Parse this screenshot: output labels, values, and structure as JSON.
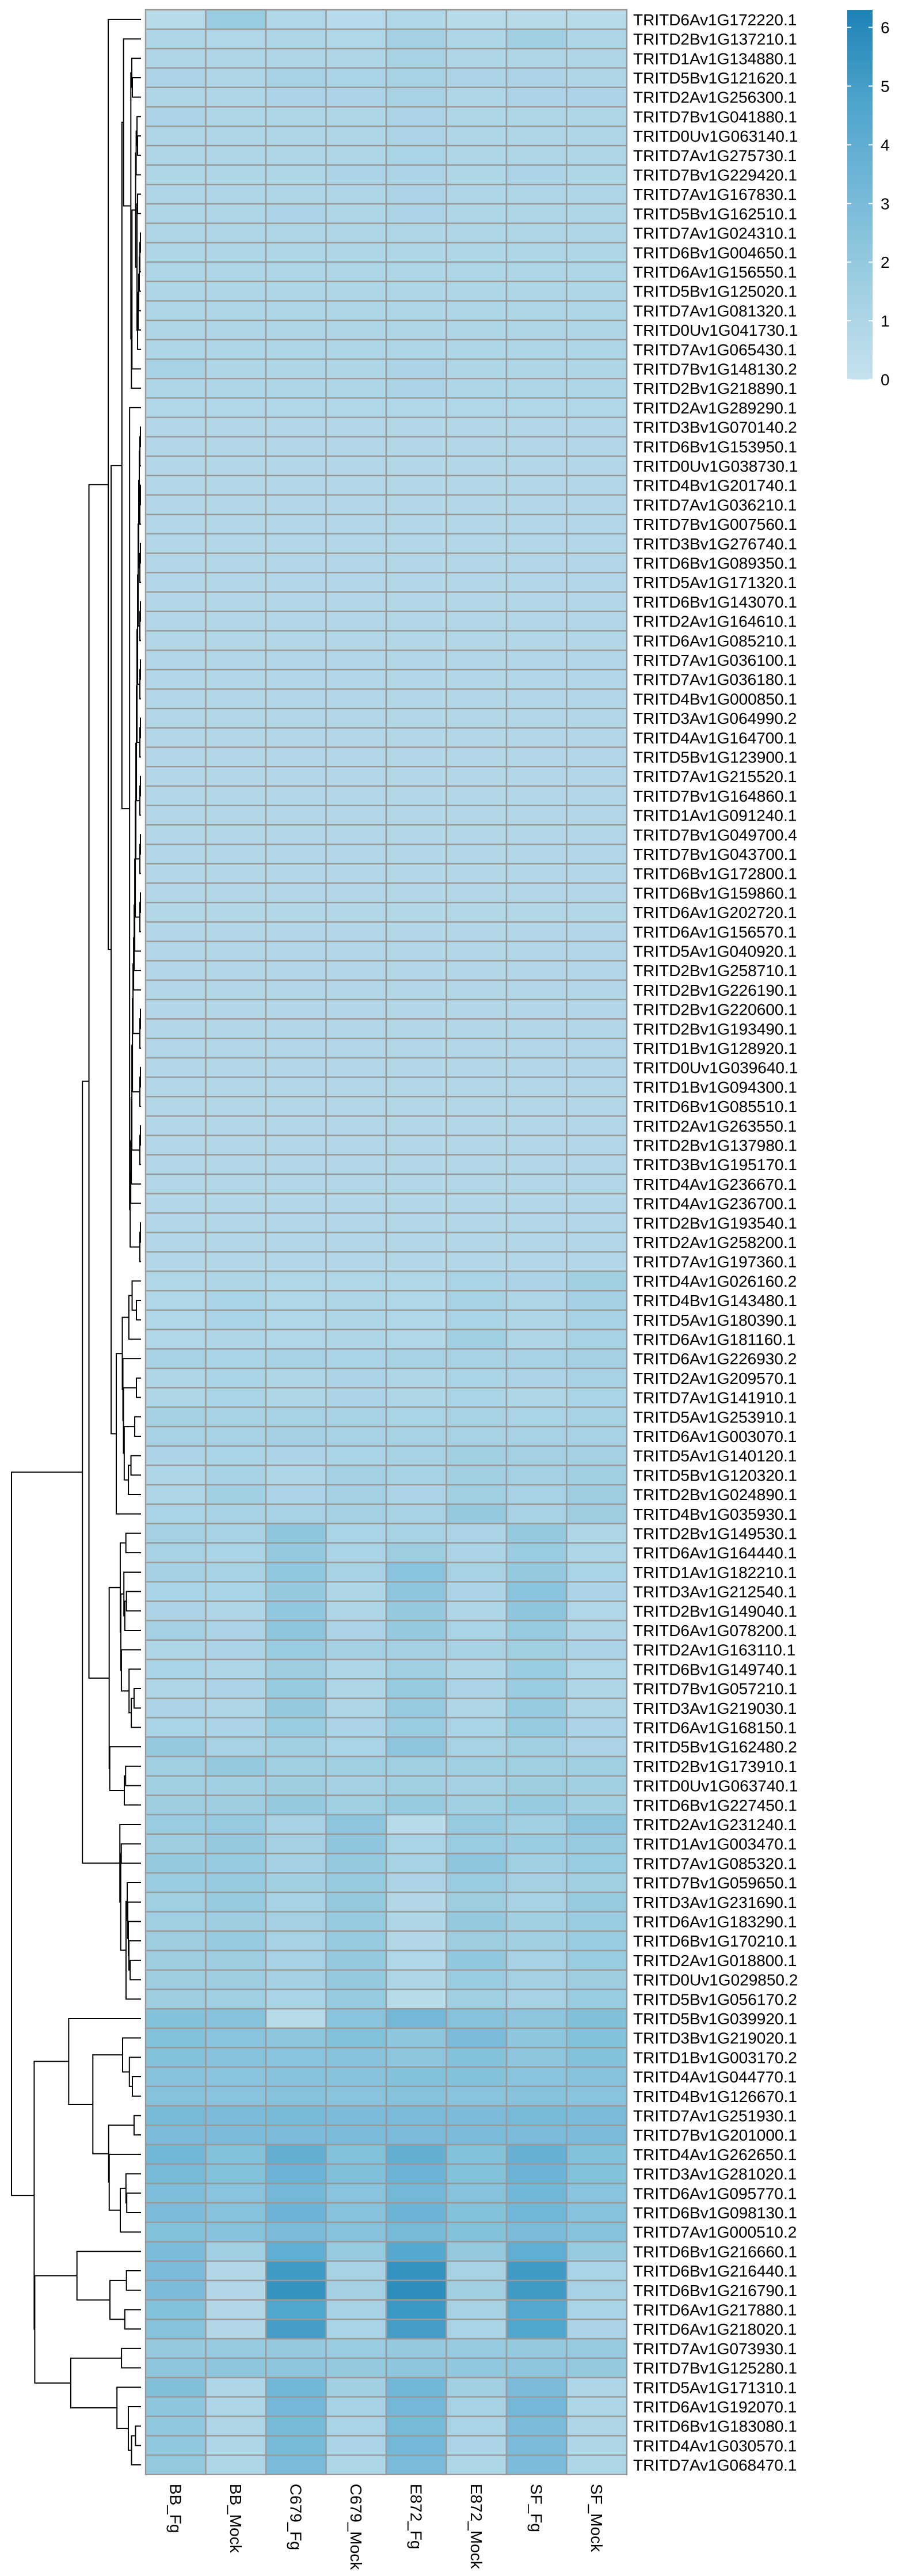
{
  "chart_data": {
    "type": "heatmap",
    "columns": [
      "BB_Fg",
      "BB_Mock",
      "C679_Fg",
      "C679_Mock",
      "E872_Fg",
      "E872_Mock",
      "SF_Fg",
      "SF_Mock"
    ],
    "rows": [
      "TRITD6Av1G172220.1",
      "TRITD2Bv1G137210.1",
      "TRITD1Av1G134880.1",
      "TRITD5Bv1G121620.1",
      "TRITD2Av1G256300.1",
      "TRITD7Bv1G041880.1",
      "TRITD0Uv1G063140.1",
      "TRITD7Av1G275730.1",
      "TRITD7Bv1G229420.1",
      "TRITD7Av1G167830.1",
      "TRITD5Bv1G162510.1",
      "TRITD7Av1G024310.1",
      "TRITD6Bv1G004650.1",
      "TRITD6Av1G156550.1",
      "TRITD5Bv1G125020.1",
      "TRITD7Av1G081320.1",
      "TRITD0Uv1G041730.1",
      "TRITD7Av1G065430.1",
      "TRITD7Bv1G148130.2",
      "TRITD2Bv1G218890.1",
      "TRITD2Av1G289290.1",
      "TRITD3Bv1G070140.2",
      "TRITD6Bv1G153950.1",
      "TRITD0Uv1G038730.1",
      "TRITD4Bv1G201740.1",
      "TRITD7Av1G036210.1",
      "TRITD7Bv1G007560.1",
      "TRITD3Bv1G276740.1",
      "TRITD6Bv1G089350.1",
      "TRITD5Av1G171320.1",
      "TRITD6Bv1G143070.1",
      "TRITD2Av1G164610.1",
      "TRITD6Av1G085210.1",
      "TRITD7Av1G036100.1",
      "TRITD7Av1G036180.1",
      "TRITD4Bv1G000850.1",
      "TRITD3Av1G064990.2",
      "TRITD4Av1G164700.1",
      "TRITD5Bv1G123900.1",
      "TRITD7Av1G215520.1",
      "TRITD7Bv1G164860.1",
      "TRITD1Av1G091240.1",
      "TRITD7Bv1G049700.4",
      "TRITD7Bv1G043700.1",
      "TRITD6Bv1G172800.1",
      "TRITD6Bv1G159860.1",
      "TRITD6Av1G202720.1",
      "TRITD6Av1G156570.1",
      "TRITD5Av1G040920.1",
      "TRITD2Bv1G258710.1",
      "TRITD2Bv1G226190.1",
      "TRITD2Bv1G220600.1",
      "TRITD2Bv1G193490.1",
      "TRITD1Bv1G128920.1",
      "TRITD0Uv1G039640.1",
      "TRITD1Bv1G094300.1",
      "TRITD6Bv1G085510.1",
      "TRITD2Av1G263550.1",
      "TRITD2Bv1G137980.1",
      "TRITD3Bv1G195170.1",
      "TRITD4Av1G236670.1",
      "TRITD4Av1G236700.1",
      "TRITD2Bv1G193540.1",
      "TRITD2Av1G258200.1",
      "TRITD7Av1G197360.1",
      "TRITD4Av1G026160.2",
      "TRITD4Bv1G143480.1",
      "TRITD5Av1G180390.1",
      "TRITD6Av1G181160.1",
      "TRITD6Av1G226930.2",
      "TRITD2Av1G209570.1",
      "TRITD7Av1G141910.1",
      "TRITD5Av1G253910.1",
      "TRITD6Av1G003070.1",
      "TRITD5Av1G140120.1",
      "TRITD5Bv1G120320.1",
      "TRITD2Bv1G024890.1",
      "TRITD4Bv1G035930.1",
      "TRITD2Bv1G149530.1",
      "TRITD6Av1G164440.1",
      "TRITD1Av1G182210.1",
      "TRITD3Av1G212540.1",
      "TRITD2Bv1G149040.1",
      "TRITD6Av1G078200.1",
      "TRITD2Av1G163110.1",
      "TRITD6Bv1G149740.1",
      "TRITD7Bv1G057210.1",
      "TRITD3Av1G219030.1",
      "TRITD6Av1G168150.1",
      "TRITD5Bv1G162480.2",
      "TRITD2Bv1G173910.1",
      "TRITD0Uv1G063740.1",
      "TRITD6Bv1G227450.1",
      "TRITD2Av1G231240.1",
      "TRITD1Av1G003470.1",
      "TRITD7Av1G085320.1",
      "TRITD7Bv1G059650.1",
      "TRITD3Av1G231690.1",
      "TRITD6Av1G183290.1",
      "TRITD6Bv1G170210.1",
      "TRITD2Av1G018800.1",
      "TRITD0Uv1G029850.2",
      "TRITD5Bv1G056170.2",
      "TRITD5Bv1G039920.1",
      "TRITD3Bv1G219020.1",
      "TRITD1Bv1G003170.2",
      "TRITD4Av1G044770.1",
      "TRITD4Bv1G126670.1",
      "TRITD7Av1G251930.1",
      "TRITD7Bv1G201000.1",
      "TRITD4Av1G262650.1",
      "TRITD3Av1G281020.1",
      "TRITD6Av1G095770.1",
      "TRITD6Bv1G098130.1",
      "TRITD7Av1G000510.2",
      "TRITD6Bv1G216660.1",
      "TRITD6Bv1G216440.1",
      "TRITD6Bv1G216790.1",
      "TRITD6Av1G217880.1",
      "TRITD6Av1G218020.1",
      "TRITD7Av1G073930.1",
      "TRITD7Bv1G125280.1",
      "TRITD5Av1G171310.1",
      "TRITD6Av1G192070.1",
      "TRITD6Bv1G183080.1",
      "TRITD4Av1G030570.1",
      "TRITD7Av1G068470.1"
    ],
    "values": [
      [
        0.6,
        1.8,
        0.9,
        0.7,
        0.9,
        0.6,
        0.6,
        0.6
      ],
      [
        1.0,
        0.9,
        1.0,
        0.9,
        1.4,
        1.0,
        1.5,
        1.0
      ],
      [
        1.0,
        1.0,
        1.0,
        1.0,
        1.3,
        1.0,
        1.0,
        1.0
      ],
      [
        1.1,
        1.0,
        1.3,
        1.2,
        1.3,
        1.1,
        1.1,
        1.0
      ],
      [
        1.0,
        1.0,
        1.1,
        1.1,
        1.3,
        1.0,
        1.1,
        1.1
      ],
      [
        1.1,
        1.0,
        1.0,
        1.0,
        1.1,
        1.0,
        1.0,
        1.0
      ],
      [
        1.0,
        1.0,
        1.0,
        1.0,
        1.1,
        1.0,
        1.0,
        1.0
      ],
      [
        1.0,
        1.0,
        1.0,
        1.0,
        1.2,
        1.0,
        1.0,
        1.0
      ],
      [
        1.0,
        1.0,
        1.0,
        1.1,
        1.1,
        1.0,
        1.1,
        1.0
      ],
      [
        1.0,
        1.0,
        1.0,
        1.0,
        1.1,
        1.0,
        1.0,
        1.0
      ],
      [
        1.0,
        1.0,
        1.1,
        1.0,
        1.1,
        1.0,
        1.0,
        1.0
      ],
      [
        1.0,
        1.0,
        1.0,
        1.0,
        1.0,
        1.0,
        1.0,
        1.0
      ],
      [
        1.0,
        1.0,
        1.0,
        1.0,
        1.0,
        1.0,
        1.0,
        1.0
      ],
      [
        1.0,
        1.0,
        1.0,
        1.0,
        1.0,
        1.0,
        1.0,
        1.0
      ],
      [
        1.0,
        1.0,
        1.0,
        1.0,
        1.0,
        1.0,
        1.0,
        1.0
      ],
      [
        1.0,
        1.0,
        1.0,
        1.0,
        1.0,
        1.0,
        1.0,
        1.0
      ],
      [
        1.0,
        1.0,
        1.0,
        1.0,
        1.0,
        1.0,
        1.0,
        1.0
      ],
      [
        1.0,
        1.0,
        1.0,
        1.0,
        1.0,
        1.0,
        1.0,
        1.0
      ],
      [
        1.3,
        1.0,
        1.0,
        1.0,
        1.1,
        1.0,
        1.0,
        1.0
      ],
      [
        1.0,
        1.0,
        1.0,
        1.0,
        1.1,
        1.0,
        1.0,
        1.0
      ],
      [
        0.9,
        0.9,
        0.9,
        0.9,
        0.9,
        0.9,
        0.9,
        0.9
      ],
      [
        0.8,
        0.8,
        0.8,
        0.8,
        0.8,
        0.8,
        0.8,
        0.8
      ],
      [
        0.8,
        0.8,
        0.8,
        0.8,
        0.8,
        0.8,
        0.8,
        0.8
      ],
      [
        0.8,
        0.8,
        0.8,
        0.8,
        0.8,
        0.8,
        0.8,
        0.8
      ],
      [
        0.8,
        0.8,
        0.8,
        0.8,
        0.8,
        0.8,
        0.8,
        0.8
      ],
      [
        0.8,
        0.8,
        0.8,
        0.8,
        0.8,
        0.8,
        0.8,
        0.8
      ],
      [
        0.8,
        0.8,
        0.8,
        0.8,
        0.8,
        0.8,
        0.8,
        0.8
      ],
      [
        0.8,
        0.8,
        0.8,
        0.8,
        0.8,
        0.8,
        0.8,
        0.8
      ],
      [
        0.8,
        0.8,
        0.8,
        0.8,
        0.8,
        0.8,
        0.8,
        0.8
      ],
      [
        0.8,
        0.8,
        0.8,
        0.8,
        0.8,
        0.8,
        0.8,
        0.8
      ],
      [
        0.8,
        0.8,
        0.8,
        0.8,
        0.8,
        0.8,
        0.8,
        0.8
      ],
      [
        0.8,
        0.8,
        0.8,
        0.8,
        0.8,
        0.8,
        0.8,
        0.8
      ],
      [
        0.8,
        0.8,
        0.8,
        0.8,
        0.8,
        0.8,
        0.8,
        0.8
      ],
      [
        0.8,
        0.8,
        0.8,
        0.8,
        0.8,
        0.8,
        0.8,
        0.8
      ],
      [
        0.8,
        0.8,
        0.8,
        0.8,
        0.8,
        0.8,
        0.8,
        0.8
      ],
      [
        0.8,
        0.8,
        0.8,
        0.8,
        0.8,
        0.8,
        0.8,
        0.8
      ],
      [
        0.8,
        0.8,
        0.8,
        0.8,
        0.8,
        0.8,
        0.8,
        0.8
      ],
      [
        0.8,
        0.8,
        0.8,
        0.8,
        0.8,
        0.8,
        0.8,
        0.8
      ],
      [
        0.8,
        0.8,
        0.8,
        0.8,
        0.8,
        0.8,
        0.8,
        0.8
      ],
      [
        0.8,
        0.8,
        0.8,
        0.8,
        0.8,
        0.8,
        0.8,
        0.8
      ],
      [
        0.8,
        0.8,
        0.8,
        0.8,
        0.8,
        0.8,
        0.8,
        0.8
      ],
      [
        0.8,
        0.8,
        0.8,
        0.8,
        0.8,
        0.8,
        0.8,
        0.8
      ],
      [
        0.8,
        0.8,
        0.8,
        0.8,
        0.8,
        0.8,
        0.8,
        0.8
      ],
      [
        0.8,
        0.8,
        0.8,
        0.8,
        0.8,
        0.8,
        0.8,
        0.8
      ],
      [
        0.8,
        0.8,
        0.8,
        0.8,
        0.8,
        0.8,
        0.8,
        0.8
      ],
      [
        0.8,
        0.8,
        0.8,
        0.8,
        0.8,
        0.8,
        0.8,
        0.8
      ],
      [
        0.8,
        0.8,
        0.8,
        0.8,
        0.8,
        0.8,
        0.8,
        0.8
      ],
      [
        0.8,
        0.8,
        0.8,
        0.8,
        0.8,
        0.8,
        0.8,
        0.8
      ],
      [
        0.8,
        0.8,
        0.8,
        0.8,
        0.8,
        0.8,
        0.8,
        0.8
      ],
      [
        0.8,
        0.8,
        0.8,
        0.8,
        0.8,
        0.8,
        0.8,
        0.8
      ],
      [
        0.8,
        0.8,
        0.8,
        0.8,
        0.8,
        0.8,
        0.8,
        0.8
      ],
      [
        0.8,
        0.8,
        0.8,
        0.8,
        0.8,
        0.8,
        0.8,
        0.8
      ],
      [
        0.8,
        0.8,
        0.8,
        0.8,
        0.8,
        0.8,
        0.8,
        0.8
      ],
      [
        0.8,
        0.8,
        0.8,
        0.8,
        0.8,
        0.8,
        0.8,
        0.8
      ],
      [
        0.8,
        0.8,
        0.8,
        0.8,
        0.8,
        0.8,
        0.8,
        0.8
      ],
      [
        0.8,
        0.8,
        0.8,
        0.8,
        0.8,
        0.8,
        0.8,
        0.8
      ],
      [
        0.8,
        0.8,
        0.8,
        0.8,
        0.8,
        0.8,
        0.8,
        0.8
      ],
      [
        0.8,
        0.8,
        0.8,
        0.8,
        0.8,
        0.8,
        0.8,
        0.8
      ],
      [
        0.8,
        0.8,
        0.8,
        0.8,
        0.8,
        0.8,
        0.8,
        0.8
      ],
      [
        0.8,
        0.8,
        0.8,
        0.8,
        0.8,
        0.8,
        0.8,
        0.8
      ],
      [
        0.8,
        0.8,
        0.8,
        0.8,
        0.8,
        0.8,
        0.8,
        0.8
      ],
      [
        0.8,
        0.8,
        0.8,
        0.8,
        0.8,
        0.8,
        0.8,
        0.8
      ],
      [
        0.8,
        0.8,
        0.8,
        0.8,
        0.8,
        0.8,
        0.8,
        0.8
      ],
      [
        0.8,
        0.8,
        0.8,
        0.8,
        0.8,
        0.8,
        0.8,
        0.8
      ],
      [
        0.8,
        0.8,
        0.8,
        0.8,
        0.8,
        0.8,
        0.8,
        0.8
      ],
      [
        0.9,
        1.0,
        0.9,
        0.9,
        0.9,
        1.2,
        1.1,
        1.5
      ],
      [
        0.9,
        1.2,
        0.9,
        1.0,
        0.9,
        1.3,
        1.0,
        1.4
      ],
      [
        0.9,
        1.2,
        0.9,
        1.0,
        0.9,
        1.2,
        1.0,
        1.3
      ],
      [
        0.9,
        1.0,
        0.9,
        1.0,
        0.9,
        1.6,
        1.0,
        1.3
      ],
      [
        1.3,
        1.2,
        1.3,
        1.2,
        1.3,
        1.3,
        1.3,
        1.4
      ],
      [
        1.0,
        1.2,
        1.0,
        1.1,
        1.0,
        1.2,
        1.1,
        1.3
      ],
      [
        1.0,
        1.2,
        1.0,
        1.1,
        1.0,
        1.2,
        1.0,
        1.2
      ],
      [
        1.4,
        1.3,
        1.3,
        1.3,
        1.2,
        1.3,
        1.2,
        1.3
      ],
      [
        1.3,
        1.3,
        1.4,
        1.3,
        1.3,
        1.3,
        1.3,
        1.3
      ],
      [
        1.1,
        1.2,
        1.1,
        1.2,
        1.3,
        1.5,
        1.4,
        1.4
      ],
      [
        1.0,
        1.3,
        1.0,
        1.4,
        1.3,
        1.5,
        1.4,
        1.6
      ],
      [
        1.0,
        1.5,
        1.1,
        1.4,
        1.1,
        1.6,
        1.3,
        1.7
      ],
      [
        1.2,
        1.3,
        1.3,
        1.4,
        1.3,
        2.0,
        1.3,
        1.7
      ],
      [
        1.4,
        1.3,
        2.2,
        1.2,
        1.3,
        1.1,
        2.0,
        1.0
      ],
      [
        1.3,
        1.2,
        2.0,
        1.2,
        1.7,
        1.1,
        1.8,
        1.0
      ],
      [
        1.4,
        1.3,
        2.1,
        1.3,
        2.4,
        1.3,
        2.0,
        1.2
      ],
      [
        1.2,
        1.2,
        2.0,
        1.0,
        2.3,
        1.1,
        2.4,
        1.1
      ],
      [
        1.1,
        1.0,
        2.1,
        1.0,
        2.0,
        1.0,
        2.2,
        0.9
      ],
      [
        1.4,
        1.1,
        2.2,
        1.1,
        2.0,
        1.2,
        1.9,
        1.0
      ],
      [
        1.0,
        1.1,
        1.8,
        1.4,
        1.4,
        1.3,
        1.6,
        1.1
      ],
      [
        1.2,
        1.0,
        1.7,
        1.0,
        1.6,
        1.0,
        1.8,
        0.9
      ],
      [
        1.0,
        1.1,
        1.9,
        1.0,
        1.9,
        1.1,
        1.8,
        1.0
      ],
      [
        1.1,
        1.0,
        2.0,
        1.0,
        1.9,
        1.0,
        1.9,
        1.0
      ],
      [
        1.2,
        1.1,
        1.8,
        1.1,
        1.8,
        1.2,
        1.9,
        1.1
      ],
      [
        2.0,
        1.3,
        1.5,
        1.2,
        2.3,
        1.3,
        1.6,
        1.1
      ],
      [
        1.6,
        2.0,
        1.6,
        1.6,
        1.6,
        1.6,
        1.6,
        1.6
      ],
      [
        1.6,
        1.6,
        1.7,
        1.4,
        1.6,
        1.4,
        1.7,
        1.5
      ],
      [
        1.7,
        1.7,
        2.0,
        1.6,
        1.9,
        1.6,
        1.9,
        1.5
      ],
      [
        1.8,
        1.9,
        1.3,
        2.3,
        0.6,
        1.9,
        1.5,
        2.3
      ],
      [
        1.7,
        2.0,
        1.4,
        2.2,
        1.2,
        1.8,
        1.8,
        1.9
      ],
      [
        2.0,
        1.9,
        1.4,
        2.0,
        1.3,
        2.3,
        1.6,
        1.8
      ],
      [
        1.8,
        1.9,
        1.5,
        1.9,
        1.1,
        1.8,
        1.4,
        1.6
      ],
      [
        1.6,
        1.9,
        1.3,
        2.0,
        0.8,
        1.7,
        1.3,
        1.9
      ],
      [
        1.6,
        1.7,
        1.4,
        1.9,
        1.0,
        2.0,
        1.5,
        1.8
      ],
      [
        1.7,
        1.9,
        1.3,
        1.9,
        0.8,
        1.7,
        1.5,
        1.8
      ],
      [
        1.7,
        1.7,
        1.3,
        2.0,
        0.9,
        2.1,
        1.3,
        1.8
      ],
      [
        1.7,
        1.7,
        1.4,
        2.0,
        1.0,
        1.8,
        1.4,
        1.7
      ],
      [
        1.7,
        1.6,
        1.2,
        1.9,
        0.6,
        1.6,
        1.3,
        1.8
      ],
      [
        2.6,
        2.5,
        0.6,
        2.4,
        3.2,
        2.5,
        2.3,
        2.7
      ],
      [
        2.6,
        2.4,
        2.3,
        2.6,
        2.2,
        3.0,
        2.2,
        2.6
      ],
      [
        2.6,
        2.5,
        2.4,
        2.5,
        2.3,
        2.6,
        2.3,
        2.6
      ],
      [
        2.5,
        2.4,
        2.5,
        2.5,
        2.6,
        2.6,
        2.4,
        2.5
      ],
      [
        2.5,
        2.4,
        2.5,
        2.4,
        2.5,
        2.4,
        2.5,
        2.4
      ],
      [
        3.1,
        3.0,
        3.1,
        2.9,
        3.0,
        2.9,
        3.1,
        3.0
      ],
      [
        3.0,
        3.0,
        3.0,
        3.0,
        3.0,
        3.0,
        3.0,
        3.0
      ],
      [
        3.3,
        2.6,
        3.9,
        2.6,
        3.9,
        2.6,
        3.8,
        2.6
      ],
      [
        3.1,
        2.6,
        3.5,
        2.7,
        3.5,
        2.6,
        3.5,
        2.6
      ],
      [
        2.8,
        2.4,
        3.2,
        2.4,
        3.2,
        2.5,
        3.3,
        2.4
      ],
      [
        2.9,
        2.5,
        3.5,
        2.5,
        3.5,
        2.6,
        3.3,
        2.5
      ],
      [
        2.6,
        2.5,
        3.0,
        2.5,
        3.1,
        2.6,
        3.0,
        2.5
      ],
      [
        3.0,
        1.6,
        4.0,
        1.9,
        4.4,
        2.0,
        4.0,
        1.9
      ],
      [
        2.9,
        0.8,
        5.2,
        1.3,
        5.5,
        1.3,
        5.2,
        1.2
      ],
      [
        2.9,
        0.8,
        5.5,
        1.4,
        5.8,
        1.5,
        5.2,
        1.3
      ],
      [
        2.6,
        0.8,
        4.6,
        1.3,
        5.3,
        1.3,
        4.5,
        1.2
      ],
      [
        2.5,
        0.8,
        5.0,
        1.2,
        5.0,
        1.2,
        4.6,
        1.1
      ],
      [
        2.0,
        1.9,
        2.0,
        1.8,
        2.0,
        1.9,
        2.0,
        1.9
      ],
      [
        2.2,
        2.2,
        2.3,
        2.0,
        2.2,
        2.1,
        2.3,
        2.0
      ],
      [
        2.7,
        1.0,
        3.3,
        1.5,
        3.3,
        1.5,
        3.0,
        1.0
      ],
      [
        2.2,
        1.0,
        3.2,
        1.3,
        3.2,
        1.3,
        3.2,
        1.0
      ],
      [
        2.1,
        1.0,
        3.1,
        1.2,
        3.1,
        1.2,
        3.0,
        1.0
      ],
      [
        2.1,
        1.0,
        3.1,
        1.1,
        3.2,
        1.1,
        3.0,
        1.0
      ],
      [
        2.0,
        1.0,
        3.0,
        1.0,
        3.0,
        1.0,
        2.9,
        1.0
      ]
    ],
    "colorbar": {
      "min": 0,
      "max": 6.3,
      "ticks": [
        0,
        1,
        2,
        3,
        4,
        5,
        6
      ],
      "colors": [
        "#c6e2ee",
        "#9fcfe2",
        "#75b9d8",
        "#4ea4cc",
        "#1e82b6"
      ]
    },
    "cell_border_color": "#999999",
    "dendrogram": "rows"
  }
}
